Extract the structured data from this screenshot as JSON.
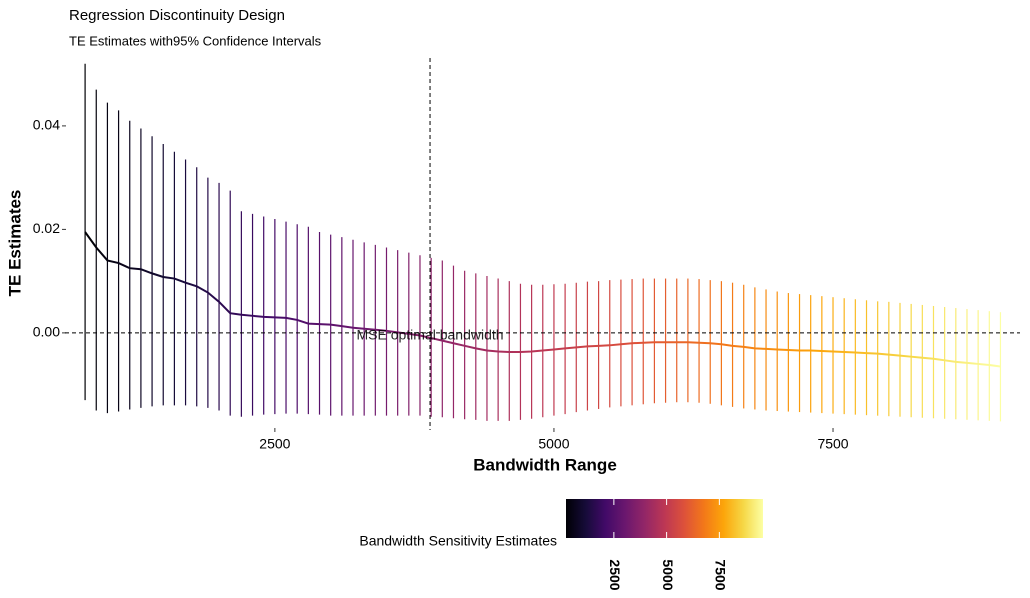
{
  "chart_data": {
    "type": "errorbar",
    "title": "Regression Discontinuity Design",
    "subtitle": "TE Estimates with95% Confidence Intervals",
    "x_label": "Bandwidth Range",
    "y_label": "TE Estimates",
    "colormap": "inferno",
    "x": [
      800,
      900,
      1000,
      1100,
      1200,
      1300,
      1400,
      1500,
      1600,
      1700,
      1800,
      1900,
      2000,
      2100,
      2200,
      2300,
      2400,
      2500,
      2600,
      2700,
      2800,
      2900,
      3000,
      3100,
      3200,
      3300,
      3400,
      3500,
      3600,
      3700,
      3800,
      3900,
      4000,
      4100,
      4200,
      4300,
      4400,
      4500,
      4600,
      4700,
      4800,
      4900,
      5000,
      5100,
      5200,
      5300,
      5400,
      5500,
      5600,
      5700,
      5800,
      5900,
      6000,
      6100,
      6200,
      6300,
      6400,
      6500,
      6600,
      6700,
      6800,
      6900,
      7000,
      7100,
      7200,
      7300,
      7400,
      7500,
      7600,
      7700,
      7800,
      7900,
      8000,
      8100,
      8200,
      8300,
      8400,
      8500,
      8600,
      8700,
      8800,
      8900,
      9000
    ],
    "estimates": [
      0.0195,
      0.0165,
      0.014,
      0.0135,
      0.0125,
      0.0123,
      0.0115,
      0.0108,
      0.0105,
      0.0097,
      0.009,
      0.0078,
      0.006,
      0.0038,
      0.0035,
      0.0033,
      0.0031,
      0.003,
      0.0029,
      0.0025,
      0.0018,
      0.0017,
      0.0016,
      0.0013,
      0.001,
      0.0008,
      0.0006,
      0.0004,
      0.0001,
      -0.0002,
      -0.0005,
      -0.001,
      -0.0015,
      -0.002,
      -0.0025,
      -0.003,
      -0.0034,
      -0.0036,
      -0.0037,
      -0.0037,
      -0.0036,
      -0.0034,
      -0.0032,
      -0.003,
      -0.0028,
      -0.0026,
      -0.0025,
      -0.0024,
      -0.0022,
      -0.002,
      -0.0019,
      -0.0018,
      -0.0018,
      -0.0018,
      -0.0018,
      -0.0019,
      -0.002,
      -0.0022,
      -0.0025,
      -0.0027,
      -0.003,
      -0.0031,
      -0.0032,
      -0.0033,
      -0.0034,
      -0.0034,
      -0.0035,
      -0.0036,
      -0.0037,
      -0.0038,
      -0.0039,
      -0.004,
      -0.0042,
      -0.0044,
      -0.0046,
      -0.0048,
      -0.005,
      -0.0053,
      -0.0056,
      -0.0058,
      -0.006,
      -0.0062,
      -0.0065
    ],
    "lower": [
      -0.013,
      -0.015,
      -0.0155,
      -0.0152,
      -0.0148,
      -0.0145,
      -0.0142,
      -0.014,
      -0.014,
      -0.014,
      -0.0142,
      -0.0145,
      -0.015,
      -0.016,
      -0.0162,
      -0.016,
      -0.0158,
      -0.0157,
      -0.0156,
      -0.0156,
      -0.0157,
      -0.0158,
      -0.016,
      -0.016,
      -0.016,
      -0.016,
      -0.016,
      -0.016,
      -0.016,
      -0.016,
      -0.016,
      -0.0162,
      -0.0163,
      -0.0165,
      -0.0167,
      -0.0168,
      -0.017,
      -0.017,
      -0.017,
      -0.0168,
      -0.0166,
      -0.0163,
      -0.016,
      -0.0157,
      -0.0153,
      -0.015,
      -0.0147,
      -0.0144,
      -0.0142,
      -0.014,
      -0.0138,
      -0.0136,
      -0.0135,
      -0.0134,
      -0.0134,
      -0.0135,
      -0.0137,
      -0.014,
      -0.0143,
      -0.0146,
      -0.0148,
      -0.015,
      -0.0151,
      -0.0152,
      -0.0153,
      -0.0154,
      -0.0155,
      -0.0156,
      -0.0157,
      -0.0158,
      -0.0159,
      -0.016,
      -0.0161,
      -0.0162,
      -0.0163,
      -0.0164,
      -0.0165,
      -0.0166,
      -0.0167,
      -0.0168,
      -0.0169,
      -0.017,
      -0.0171
    ],
    "upper": [
      0.052,
      0.047,
      0.0445,
      0.043,
      0.041,
      0.0395,
      0.038,
      0.0365,
      0.035,
      0.0335,
      0.032,
      0.03,
      0.029,
      0.0275,
      0.0235,
      0.023,
      0.0225,
      0.022,
      0.0215,
      0.021,
      0.0205,
      0.0195,
      0.019,
      0.0185,
      0.018,
      0.0175,
      0.017,
      0.0165,
      0.016,
      0.0155,
      0.015,
      0.0145,
      0.014,
      0.013,
      0.012,
      0.0115,
      0.011,
      0.0105,
      0.01,
      0.0095,
      0.0093,
      0.0093,
      0.0094,
      0.0095,
      0.0097,
      0.0099,
      0.01,
      0.0102,
      0.0103,
      0.0104,
      0.0105,
      0.0105,
      0.0105,
      0.0105,
      0.0105,
      0.0104,
      0.0102,
      0.01,
      0.0097,
      0.0093,
      0.0088,
      0.0084,
      0.008,
      0.0077,
      0.0075,
      0.0073,
      0.0071,
      0.0069,
      0.0067,
      0.0065,
      0.0063,
      0.0061,
      0.006,
      0.0058,
      0.0056,
      0.0054,
      0.0052,
      0.005,
      0.0048,
      0.0046,
      0.0044,
      0.0042,
      0.004
    ],
    "xlim": [
      620,
      9175
    ],
    "ylim": [
      -0.0178,
      0.0537
    ],
    "xticks": [
      2500,
      5000,
      7500
    ],
    "yticks": [
      {
        "value": 0,
        "label": "0.00"
      },
      {
        "value": 0.02,
        "label": "0.02"
      },
      {
        "value": 0.04,
        "label": "0.04"
      }
    ],
    "hline": 0,
    "vline": {
      "x": 3890,
      "label": "MSE optimal bandwidth"
    },
    "colorbar": {
      "title": "Bandwidth Sensitivity Estimates",
      "lim": [
        800,
        9000
      ],
      "ticks": [
        2500,
        5000,
        7500
      ]
    }
  }
}
